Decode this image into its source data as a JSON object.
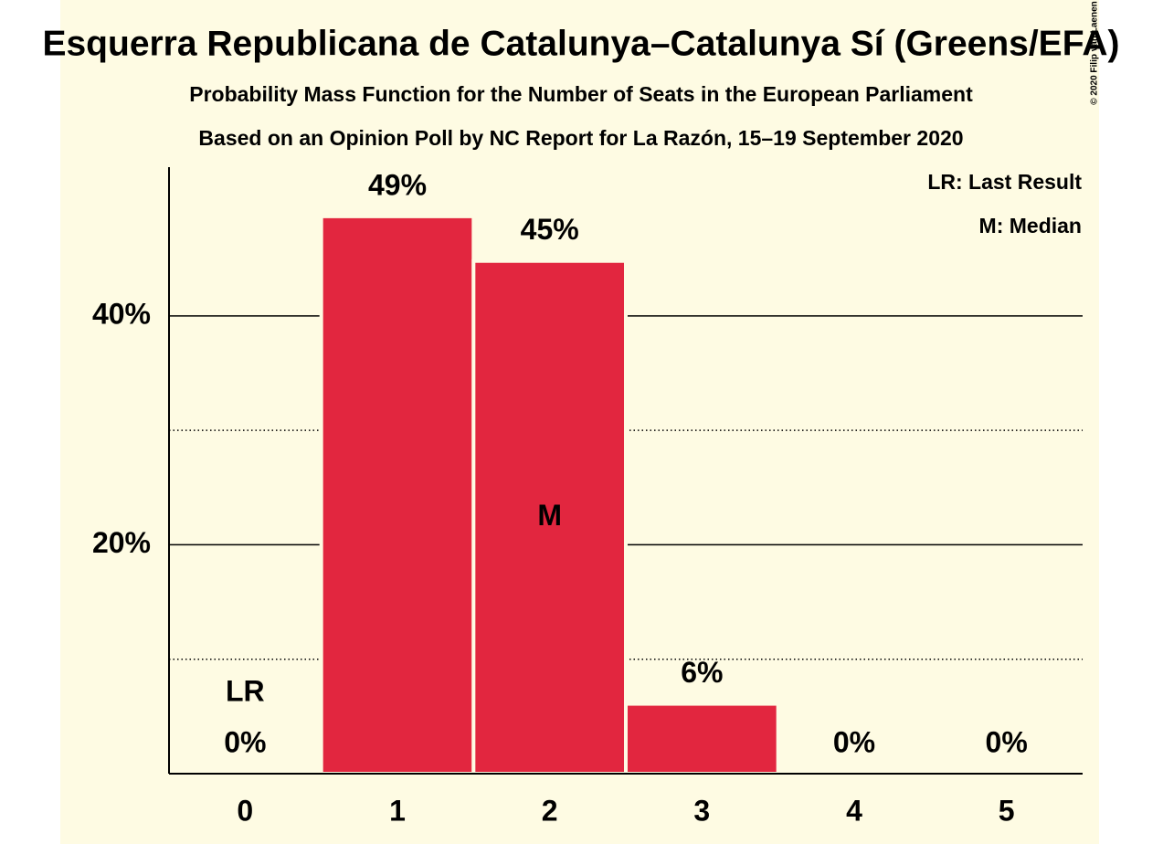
{
  "chart_data": {
    "type": "bar",
    "title": "Esquerra Republicana de Catalunya–Catalunya Sí (Greens/EFA)",
    "subtitles": [
      "Probability Mass Function for the Number of Seats in the European Parliament",
      "Based on an Opinion Poll by NC Report for La Razón, 15–19 September 2020"
    ],
    "categories": [
      "0",
      "1",
      "2",
      "3",
      "4",
      "5"
    ],
    "values": [
      0,
      48.7,
      44.8,
      6.1,
      0,
      0
    ],
    "value_labels": [
      "0%",
      "49%",
      "45%",
      "6%",
      "0%",
      "0%"
    ],
    "color": "#e2263f",
    "ylim": [
      0,
      53
    ],
    "yticks": [
      {
        "value": 20,
        "label": "20%"
      },
      {
        "value": 40,
        "label": "40%"
      }
    ],
    "minor_yticks": [
      10,
      30
    ],
    "grid": true,
    "annotations": [
      {
        "text": "LR",
        "category": 0
      },
      {
        "text": "M",
        "category": 2
      }
    ],
    "legend": [
      "LR: Last Result",
      "M: Median"
    ],
    "copyright": "© 2020 Filip van Laenen"
  }
}
